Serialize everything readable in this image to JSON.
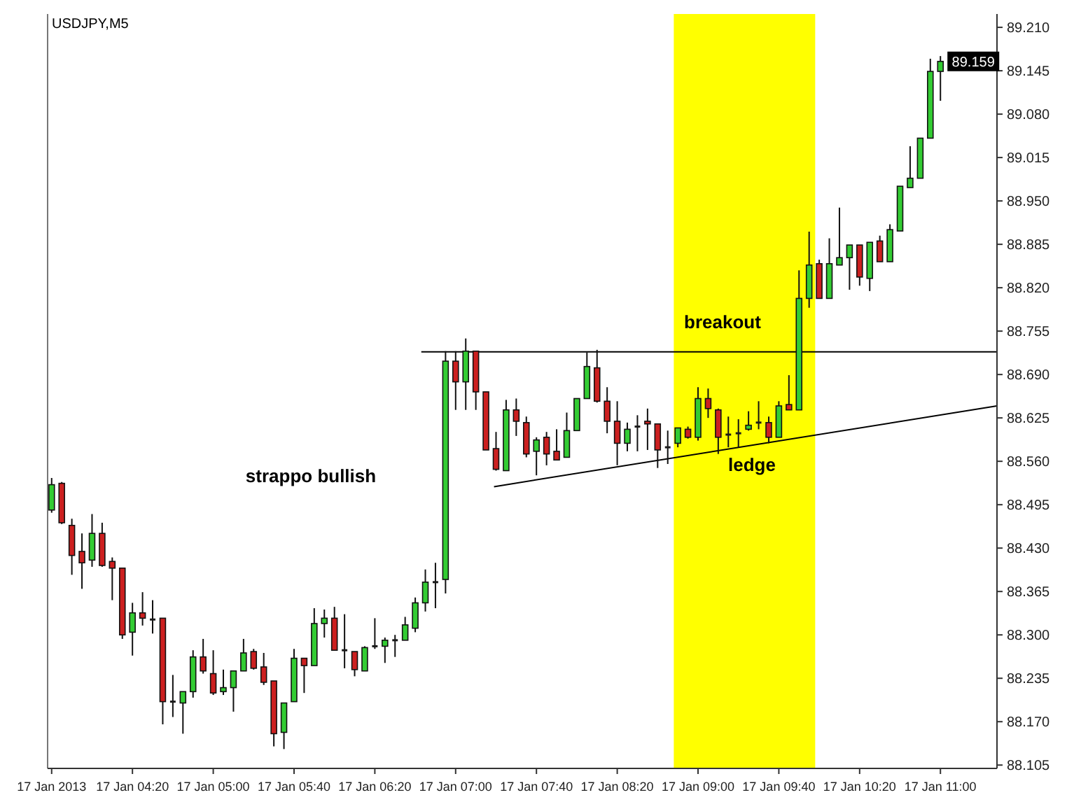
{
  "chart_data": {
    "type": "candlestick",
    "title": "USDJPY,M5",
    "x": [
      "2013-01-17T03:40",
      "2013-01-17T03:45",
      "2013-01-17T03:50",
      "2013-01-17T03:55",
      "2013-01-17T04:00",
      "2013-01-17T04:05",
      "2013-01-17T04:10",
      "2013-01-17T04:15",
      "2013-01-17T04:20",
      "2013-01-17T04:25",
      "2013-01-17T04:30",
      "2013-01-17T04:35",
      "2013-01-17T04:40",
      "2013-01-17T04:45",
      "2013-01-17T04:50",
      "2013-01-17T04:55",
      "2013-01-17T05:00",
      "2013-01-17T05:05",
      "2013-01-17T05:10",
      "2013-01-17T05:15",
      "2013-01-17T05:20",
      "2013-01-17T05:25",
      "2013-01-17T05:30",
      "2013-01-17T05:35",
      "2013-01-17T05:40",
      "2013-01-17T05:45",
      "2013-01-17T05:50",
      "2013-01-17T05:55",
      "2013-01-17T06:00",
      "2013-01-17T06:05",
      "2013-01-17T06:10",
      "2013-01-17T06:15",
      "2013-01-17T06:20",
      "2013-01-17T06:25",
      "2013-01-17T06:30",
      "2013-01-17T06:35",
      "2013-01-17T06:40",
      "2013-01-17T06:45",
      "2013-01-17T06:50",
      "2013-01-17T06:55",
      "2013-01-17T07:00",
      "2013-01-17T07:05",
      "2013-01-17T07:10",
      "2013-01-17T07:15",
      "2013-01-17T07:20",
      "2013-01-17T07:25",
      "2013-01-17T07:30",
      "2013-01-17T07:35",
      "2013-01-17T07:40",
      "2013-01-17T07:45",
      "2013-01-17T07:50",
      "2013-01-17T07:55",
      "2013-01-17T08:00",
      "2013-01-17T08:05",
      "2013-01-17T08:10",
      "2013-01-17T08:15",
      "2013-01-17T08:20",
      "2013-01-17T08:25",
      "2013-01-17T08:30",
      "2013-01-17T08:35",
      "2013-01-17T08:40",
      "2013-01-17T08:45",
      "2013-01-17T08:50",
      "2013-01-17T08:55",
      "2013-01-17T09:00",
      "2013-01-17T09:05",
      "2013-01-17T09:10",
      "2013-01-17T09:15",
      "2013-01-17T09:20",
      "2013-01-17T09:25",
      "2013-01-17T09:30",
      "2013-01-17T09:35",
      "2013-01-17T09:40",
      "2013-01-17T09:45",
      "2013-01-17T09:50",
      "2013-01-17T09:55",
      "2013-01-17T10:00",
      "2013-01-17T10:05",
      "2013-01-17T10:10",
      "2013-01-17T10:15",
      "2013-01-17T10:20",
      "2013-01-17T10:25",
      "2013-01-17T10:30",
      "2013-01-17T10:35",
      "2013-01-17T10:40",
      "2013-01-17T10:45",
      "2013-01-17T10:50",
      "2013-01-17T10:55",
      "2013-01-17T11:00"
    ],
    "ohlc": [
      [
        88.487,
        88.535,
        88.483,
        88.525
      ],
      [
        88.527,
        88.529,
        88.466,
        88.468
      ],
      [
        88.464,
        88.474,
        88.39,
        88.419
      ],
      [
        88.425,
        88.452,
        88.369,
        88.408
      ],
      [
        88.412,
        88.481,
        88.402,
        88.452
      ],
      [
        88.452,
        88.468,
        88.402,
        88.404
      ],
      [
        88.41,
        88.416,
        88.352,
        88.4
      ],
      [
        88.4,
        88.4,
        88.294,
        88.3
      ],
      [
        88.304,
        88.348,
        88.269,
        88.333
      ],
      [
        88.333,
        88.364,
        88.314,
        88.325
      ],
      [
        88.323,
        88.352,
        88.302,
        88.323
      ],
      [
        88.325,
        88.325,
        88.166,
        88.2
      ],
      [
        88.2,
        88.24,
        88.177,
        88.2
      ],
      [
        88.198,
        88.215,
        88.152,
        88.215
      ],
      [
        88.215,
        88.277,
        88.206,
        88.267
      ],
      [
        88.267,
        88.294,
        88.242,
        88.246
      ],
      [
        88.242,
        88.277,
        88.21,
        88.213
      ],
      [
        88.215,
        88.248,
        88.21,
        88.221
      ],
      [
        88.221,
        88.246,
        88.185,
        88.246
      ],
      [
        88.246,
        88.294,
        88.246,
        88.273
      ],
      [
        88.275,
        88.279,
        88.248,
        88.25
      ],
      [
        88.252,
        88.273,
        88.225,
        88.229
      ],
      [
        88.231,
        88.231,
        88.133,
        88.152
      ],
      [
        88.154,
        88.198,
        88.129,
        88.198
      ],
      [
        88.2,
        88.279,
        88.2,
        88.265
      ],
      [
        88.265,
        88.265,
        88.213,
        88.254
      ],
      [
        88.254,
        88.34,
        88.254,
        88.317
      ],
      [
        88.317,
        88.338,
        88.296,
        88.325
      ],
      [
        88.325,
        88.342,
        88.277,
        88.277
      ],
      [
        88.277,
        88.331,
        88.25,
        88.277
      ],
      [
        88.275,
        88.275,
        88.238,
        88.248
      ],
      [
        88.246,
        88.283,
        88.246,
        88.281
      ],
      [
        88.283,
        88.325,
        88.279,
        88.283
      ],
      [
        88.283,
        88.296,
        88.258,
        88.292
      ],
      [
        88.292,
        88.3,
        88.267,
        88.292
      ],
      [
        88.292,
        88.327,
        88.292,
        88.315
      ],
      [
        88.31,
        88.356,
        88.304,
        88.348
      ],
      [
        88.348,
        88.398,
        88.335,
        88.379
      ],
      [
        88.379,
        88.408,
        88.34,
        88.379
      ],
      [
        88.383,
        88.725,
        88.362,
        88.71
      ],
      [
        88.71,
        88.725,
        88.637,
        88.679
      ],
      [
        88.679,
        88.744,
        88.637,
        88.725
      ],
      [
        88.725,
        88.725,
        88.637,
        88.664
      ],
      [
        88.664,
        88.664,
        88.577,
        88.577
      ],
      [
        88.579,
        88.604,
        88.546,
        88.548
      ],
      [
        88.546,
        88.652,
        88.546,
        88.637
      ],
      [
        88.637,
        88.654,
        88.598,
        88.62
      ],
      [
        88.618,
        88.627,
        88.566,
        88.571
      ],
      [
        88.575,
        88.596,
        88.539,
        88.592
      ],
      [
        88.596,
        88.604,
        88.554,
        88.571
      ],
      [
        88.575,
        88.608,
        88.562,
        88.562
      ],
      [
        88.566,
        88.633,
        88.566,
        88.606
      ],
      [
        88.606,
        88.654,
        88.606,
        88.654
      ],
      [
        88.654,
        88.723,
        88.654,
        88.702
      ],
      [
        88.7,
        88.727,
        88.648,
        88.65
      ],
      [
        88.65,
        88.671,
        88.602,
        88.62
      ],
      [
        88.62,
        88.65,
        88.554,
        88.587
      ],
      [
        88.587,
        88.618,
        88.575,
        88.608
      ],
      [
        88.612,
        88.629,
        88.575,
        88.612
      ],
      [
        88.62,
        88.639,
        88.577,
        88.616
      ],
      [
        88.616,
        88.616,
        88.55,
        88.577
      ],
      [
        88.581,
        88.606,
        88.556,
        88.581
      ],
      [
        88.587,
        88.61,
        88.581,
        88.61
      ],
      [
        88.608,
        88.612,
        88.594,
        88.596
      ],
      [
        88.596,
        88.671,
        88.591,
        88.654
      ],
      [
        88.654,
        88.669,
        88.625,
        88.639
      ],
      [
        88.637,
        88.639,
        88.571,
        88.596
      ],
      [
        88.6,
        88.627,
        88.581,
        88.6
      ],
      [
        88.602,
        88.623,
        88.581,
        88.602
      ],
      [
        88.608,
        88.635,
        88.606,
        88.614
      ],
      [
        88.618,
        88.65,
        88.608,
        88.618
      ],
      [
        88.618,
        88.627,
        88.587,
        88.596
      ],
      [
        88.596,
        88.65,
        88.596,
        88.643
      ],
      [
        88.645,
        88.689,
        88.637,
        88.637
      ],
      [
        88.637,
        88.846,
        88.637,
        88.804
      ],
      [
        88.804,
        88.904,
        88.79,
        88.854
      ],
      [
        88.856,
        88.862,
        88.804,
        88.804
      ],
      [
        88.804,
        88.894,
        88.804,
        88.856
      ],
      [
        88.854,
        88.94,
        88.854,
        88.865
      ],
      [
        88.865,
        88.884,
        88.817,
        88.884
      ],
      [
        88.884,
        88.884,
        88.823,
        88.836
      ],
      [
        88.834,
        88.888,
        88.815,
        88.888
      ],
      [
        88.89,
        88.898,
        88.859,
        88.859
      ],
      [
        88.859,
        88.915,
        88.859,
        88.907
      ],
      [
        88.905,
        88.972,
        88.905,
        88.972
      ],
      [
        88.97,
        89.032,
        88.97,
        88.984
      ],
      [
        88.984,
        89.044,
        88.984,
        89.044
      ],
      [
        89.044,
        89.163,
        89.044,
        89.144
      ],
      [
        89.144,
        89.167,
        89.1,
        89.159
      ]
    ],
    "colors": [
      "#33cc33",
      "#cc2020",
      "#cc2020",
      "#cc2020",
      "#33cc33",
      "#cc2020",
      "#cc2020",
      "#cc2020",
      "#33cc33",
      "#cc2020",
      "#1a1a1a",
      "#cc2020",
      "#1a1a1a",
      "#33cc33",
      "#33cc33",
      "#cc2020",
      "#cc2020",
      "#33cc33",
      "#33cc33",
      "#33cc33",
      "#cc2020",
      "#cc2020",
      "#cc2020",
      "#33cc33",
      "#33cc33",
      "#cc2020",
      "#33cc33",
      "#33cc33",
      "#cc2020",
      "#1a1a1a",
      "#cc2020",
      "#33cc33",
      "#1a1a1a",
      "#33cc33",
      "#1a1a1a",
      "#33cc33",
      "#33cc33",
      "#33cc33",
      "#1a1a1a",
      "#33cc33",
      "#cc2020",
      "#33cc33",
      "#cc2020",
      "#cc2020",
      "#cc2020",
      "#33cc33",
      "#cc2020",
      "#cc2020",
      "#33cc33",
      "#cc2020",
      "#cc2020",
      "#33cc33",
      "#33cc33",
      "#33cc33",
      "#cc2020",
      "#cc2020",
      "#cc2020",
      "#33cc33",
      "#1a1a1a",
      "#cc2020",
      "#cc2020",
      "#1a1a1a",
      "#33cc33",
      "#cc2020",
      "#33cc33",
      "#cc2020",
      "#cc2020",
      "#1a1a1a",
      "#1a1a1a",
      "#33cc33",
      "#1a1a1a",
      "#cc2020",
      "#33cc33",
      "#cc2020",
      "#33cc33",
      "#33cc33",
      "#cc2020",
      "#33cc33",
      "#33cc33",
      "#33cc33",
      "#cc2020",
      "#33cc33",
      "#cc2020",
      "#33cc33",
      "#33cc33",
      "#33cc33",
      "#33cc33",
      "#33cc33",
      "#33cc33"
    ],
    "series": [
      {
        "type": "line",
        "color": "#000000",
        "x": [
          "2013-01-17T06:43",
          "2013-01-17T11:28"
        ],
        "values": [
          88.724,
          88.724
        ]
      },
      {
        "type": "line",
        "color": "#000000",
        "x": [
          "2013-01-17T07:19",
          "2013-01-17T11:28"
        ],
        "values": [
          88.522,
          88.643
        ]
      }
    ],
    "bands": [
      {
        "axis": "x",
        "from": "2013-01-17T08:48",
        "to": "2013-01-17T09:58",
        "color": "#ffff00"
      }
    ],
    "annotations": [
      "breakout",
      "strappo bullish",
      "ledge",
      {
        "text": "89.159",
        "x": "2013-01-17T11:00",
        "y": 89.159
      }
    ],
    "xlim": [
      "2013-01-17T03:38",
      "2013-01-17T11:28"
    ],
    "xticks": [
      {
        "value": "2013-01-17T03:40",
        "label": "17 Jan 2013"
      },
      {
        "value": "2013-01-17T04:20",
        "label": "17 Jan 04:20"
      },
      {
        "value": "2013-01-17T05:00",
        "label": "17 Jan 05:00"
      },
      {
        "value": "2013-01-17T05:40",
        "label": "17 Jan 05:40"
      },
      {
        "value": "2013-01-17T06:20",
        "label": "17 Jan 06:20"
      },
      {
        "value": "2013-01-17T07:00",
        "label": "17 Jan 07:00"
      },
      {
        "value": "2013-01-17T07:40",
        "label": "17 Jan 07:40"
      },
      {
        "value": "2013-01-17T08:20",
        "label": "17 Jan 08:20"
      },
      {
        "value": "2013-01-17T09:00",
        "label": "17 Jan 09:00"
      },
      {
        "value": "2013-01-17T09:40",
        "label": "17 Jan 09:40"
      },
      {
        "value": "2013-01-17T10:20",
        "label": "17 Jan 10:20"
      },
      {
        "value": "2013-01-17T11:00",
        "label": "17 Jan 11:00"
      }
    ],
    "ylim": [
      88.1,
      89.23
    ],
    "yticks": [
      88.105,
      {
        "value": 88.17,
        "label": "88.170"
      },
      88.235,
      {
        "value": 88.3,
        "label": "88.300"
      },
      88.365,
      {
        "value": 88.43,
        "label": "88.430"
      },
      88.495,
      {
        "value": 88.56,
        "label": "88.560"
      },
      88.625,
      {
        "value": 88.69,
        "label": "88.690"
      },
      88.755,
      {
        "value": 88.82,
        "label": "88.820"
      },
      88.885,
      {
        "value": 88.95,
        "label": "88.950"
      },
      89.015,
      {
        "value": 89.08,
        "label": "89.080"
      },
      89.145,
      {
        "value": 89.21,
        "label": "89.210"
      }
    ]
  }
}
